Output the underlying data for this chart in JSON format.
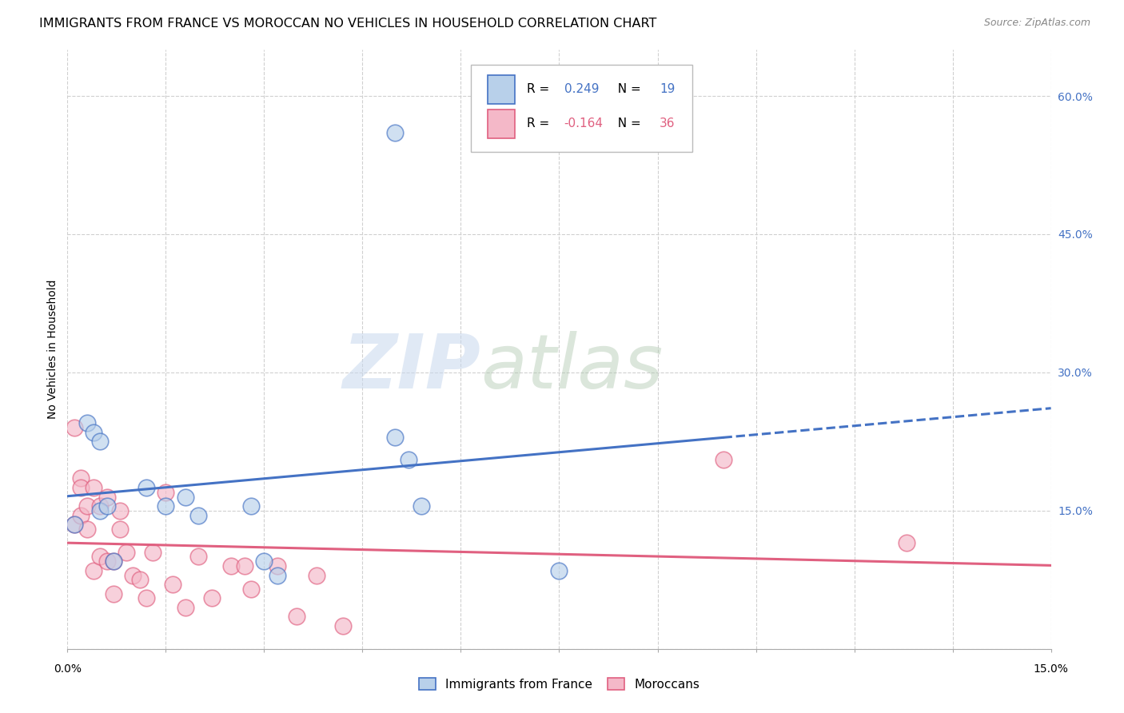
{
  "title": "IMMIGRANTS FROM FRANCE VS MOROCCAN NO VEHICLES IN HOUSEHOLD CORRELATION CHART",
  "source": "Source: ZipAtlas.com",
  "ylabel": "No Vehicles in Household",
  "legend_blue_label": "Immigrants from France",
  "legend_pink_label": "Moroccans",
  "R_blue": "0.249",
  "N_blue": "19",
  "R_pink": "-0.164",
  "N_pink": "36",
  "blue_fill": "#b8d0ea",
  "blue_edge": "#4472c4",
  "blue_line": "#4472c4",
  "pink_fill": "#f4b8c8",
  "pink_edge": "#e06080",
  "pink_line": "#e06080",
  "xlim": [
    0.0,
    0.15
  ],
  "ylim": [
    0.0,
    0.65
  ],
  "ytick_vals": [
    0.0,
    0.15,
    0.3,
    0.45,
    0.6
  ],
  "ytick_labels": [
    "",
    "15.0%",
    "30.0%",
    "45.0%",
    "60.0%"
  ],
  "xtick_vals": [
    0.0,
    0.015,
    0.03,
    0.045,
    0.06,
    0.075,
    0.09,
    0.105,
    0.12,
    0.135,
    0.15
  ],
  "blue_x": [
    0.001,
    0.003,
    0.004,
    0.005,
    0.005,
    0.006,
    0.007,
    0.012,
    0.015,
    0.018,
    0.02,
    0.028,
    0.03,
    0.032,
    0.05,
    0.052,
    0.054,
    0.075,
    0.05
  ],
  "blue_y": [
    0.135,
    0.245,
    0.235,
    0.225,
    0.15,
    0.155,
    0.095,
    0.175,
    0.155,
    0.165,
    0.145,
    0.155,
    0.095,
    0.08,
    0.23,
    0.205,
    0.155,
    0.085,
    0.56
  ],
  "pink_x": [
    0.001,
    0.001,
    0.002,
    0.002,
    0.002,
    0.003,
    0.003,
    0.004,
    0.004,
    0.005,
    0.005,
    0.006,
    0.006,
    0.007,
    0.007,
    0.008,
    0.008,
    0.009,
    0.01,
    0.011,
    0.012,
    0.013,
    0.015,
    0.016,
    0.018,
    0.02,
    0.022,
    0.025,
    0.027,
    0.028,
    0.032,
    0.035,
    0.038,
    0.042,
    0.1,
    0.128
  ],
  "pink_y": [
    0.135,
    0.24,
    0.185,
    0.175,
    0.145,
    0.155,
    0.13,
    0.175,
    0.085,
    0.155,
    0.1,
    0.165,
    0.095,
    0.095,
    0.06,
    0.15,
    0.13,
    0.105,
    0.08,
    0.075,
    0.055,
    0.105,
    0.17,
    0.07,
    0.045,
    0.1,
    0.055,
    0.09,
    0.09,
    0.065,
    0.09,
    0.035,
    0.08,
    0.025,
    0.205,
    0.115
  ],
  "watermark_zip": "ZIP",
  "watermark_atlas": "atlas",
  "grid_color": "#d0d0d0",
  "background": "#ffffff",
  "title_fontsize": 11.5,
  "source_fontsize": 9,
  "tick_fontsize": 10,
  "ylabel_fontsize": 10,
  "legend_fontsize": 11
}
